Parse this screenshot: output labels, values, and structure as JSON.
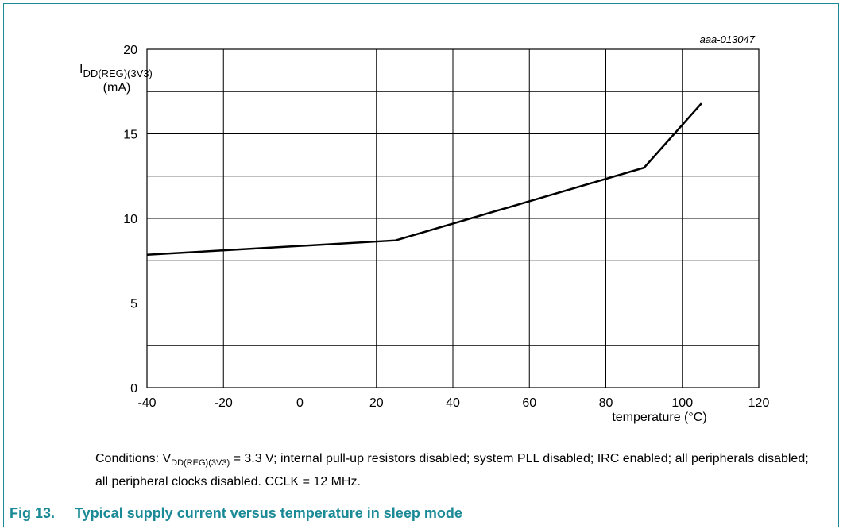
{
  "chart_data": {
    "type": "line",
    "id_label": "aaa-013047",
    "ylabel": {
      "symbol": "I",
      "subscript": "DD(REG)(3V3)",
      "unit": "(mA)"
    },
    "xlabel": "temperature (°C)",
    "xlim": [
      -40,
      120
    ],
    "ylim": [
      0,
      20
    ],
    "x_ticks": [
      -40,
      -20,
      0,
      20,
      40,
      60,
      80,
      100,
      120
    ],
    "y_ticks": [
      0,
      5,
      10,
      15,
      20
    ],
    "grid": true,
    "series": [
      {
        "x": [
          -40,
          25,
          90,
          105
        ],
        "y": [
          7.85,
          8.7,
          13.0,
          16.8
        ]
      }
    ]
  },
  "conditions": {
    "prefix": "Conditions: V",
    "subscript": "DD(REG)(3V3)",
    "text": " = 3.3 V; internal pull-up resistors disabled; system PLL disabled; IRC enabled; all peripherals disabled; all peripheral clocks disabled. CCLK = 12 MHz."
  },
  "caption": {
    "number": "Fig 13.",
    "title": "Typical supply current versus temperature in sleep mode"
  },
  "colors": {
    "accent": "#1a8a96",
    "line": "#000000",
    "grid": "#000000"
  }
}
